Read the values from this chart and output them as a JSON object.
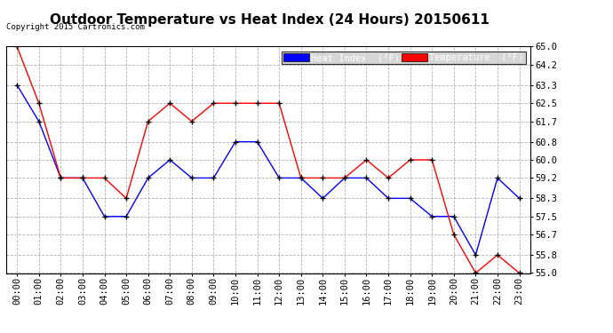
{
  "title": "Outdoor Temperature vs Heat Index (24 Hours) 20150611",
  "copyright": "Copyright 2015 Cartronics.com",
  "x_labels": [
    "00:00",
    "01:00",
    "02:00",
    "03:00",
    "04:00",
    "05:00",
    "06:00",
    "07:00",
    "08:00",
    "09:00",
    "10:00",
    "11:00",
    "12:00",
    "13:00",
    "14:00",
    "15:00",
    "16:00",
    "17:00",
    "18:00",
    "19:00",
    "20:00",
    "21:00",
    "22:00",
    "23:00"
  ],
  "heat_index": [
    63.3,
    61.7,
    59.2,
    59.2,
    57.5,
    57.5,
    59.2,
    60.0,
    59.2,
    59.2,
    60.8,
    60.8,
    59.2,
    59.2,
    58.3,
    59.2,
    59.2,
    58.3,
    58.3,
    57.5,
    57.5,
    55.8,
    59.2,
    58.3
  ],
  "temperature": [
    65.0,
    62.5,
    59.2,
    59.2,
    59.2,
    58.3,
    61.7,
    62.5,
    61.7,
    62.5,
    62.5,
    62.5,
    62.5,
    59.2,
    59.2,
    59.2,
    60.0,
    59.2,
    60.0,
    60.0,
    56.7,
    55.0,
    55.8,
    55.0
  ],
  "ylim_min": 55.0,
  "ylim_max": 65.0,
  "yticks": [
    55.0,
    55.8,
    56.7,
    57.5,
    58.3,
    59.2,
    60.0,
    60.8,
    61.7,
    62.5,
    63.3,
    64.2,
    65.0
  ],
  "heat_index_color": "#0000ff",
  "temperature_color": "#ff0000",
  "heat_index_label": "Heat Index  (°F)",
  "temperature_label": "Temperature  (°F)",
  "background_color": "#ffffff",
  "grid_color": "#aaaaaa",
  "title_fontsize": 11,
  "tick_fontsize": 7.5,
  "copyright_fontsize": 6.5,
  "legend_fontsize": 7.5
}
